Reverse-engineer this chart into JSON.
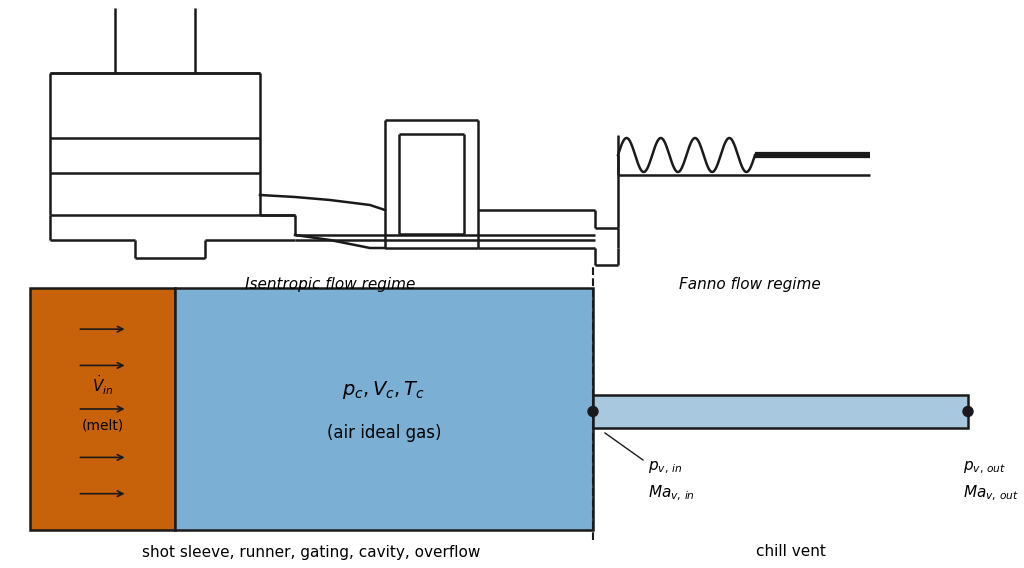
{
  "bg_color": "#ffffff",
  "line_color": "#1a1a1a",
  "orange_color": "#c8620a",
  "blue_color": "#7bafd4",
  "vent_blue": "#a8c8e0",
  "fig_width": 10.24,
  "fig_height": 5.68,
  "isentropic_label": "Isentropic flow regime",
  "fanno_label": "Fanno flow regime",
  "bottom_label": "shot sleeve, runner, gating, cavity, overflow",
  "chill_vent_label": "chill vent",
  "pc_label": "$p_c, V_c, T_c$",
  "air_label": "(air ideal gas)",
  "vdot_label": "$\\dot{V}_{in}$",
  "melt_label": "(melt)",
  "pv_in_label1": "$p_{v,\\, in}$",
  "pv_in_label2": "$Ma_{v,\\, in}$",
  "pv_out_label1": "$p_{v,\\, out}$",
  "pv_out_label2": "$Ma_{v,\\, out}$"
}
